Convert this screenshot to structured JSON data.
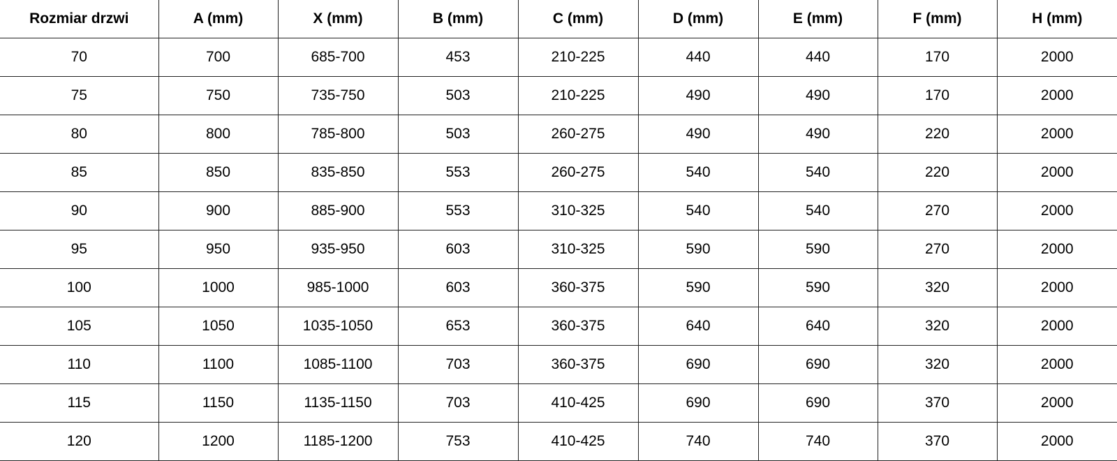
{
  "table": {
    "headers": [
      "Rozmiar drzwi",
      "A (mm)",
      "X (mm)",
      "B (mm)",
      "C (mm)",
      "D (mm)",
      "E (mm)",
      "F (mm)",
      "H (mm)"
    ],
    "rows": [
      [
        "70",
        "700",
        "685-700",
        "453",
        "210-225",
        "440",
        "440",
        "170",
        "2000"
      ],
      [
        "75",
        "750",
        "735-750",
        "503",
        "210-225",
        "490",
        "490",
        "170",
        "2000"
      ],
      [
        "80",
        "800",
        "785-800",
        "503",
        "260-275",
        "490",
        "490",
        "220",
        "2000"
      ],
      [
        "85",
        "850",
        "835-850",
        "553",
        "260-275",
        "540",
        "540",
        "220",
        "2000"
      ],
      [
        "90",
        "900",
        "885-900",
        "553",
        "310-325",
        "540",
        "540",
        "270",
        "2000"
      ],
      [
        "95",
        "950",
        "935-950",
        "603",
        "310-325",
        "590",
        "590",
        "270",
        "2000"
      ],
      [
        "100",
        "1000",
        "985-1000",
        "603",
        "360-375",
        "590",
        "590",
        "320",
        "2000"
      ],
      [
        "105",
        "1050",
        "1035-1050",
        "653",
        "360-375",
        "640",
        "640",
        "320",
        "2000"
      ],
      [
        "110",
        "1100",
        "1085-1100",
        "703",
        "360-375",
        "690",
        "690",
        "320",
        "2000"
      ],
      [
        "115",
        "1150",
        "1135-1150",
        "703",
        "410-425",
        "690",
        "690",
        "370",
        "2000"
      ],
      [
        "120",
        "1200",
        "1185-1200",
        "753",
        "410-425",
        "740",
        "740",
        "370",
        "2000"
      ]
    ]
  }
}
